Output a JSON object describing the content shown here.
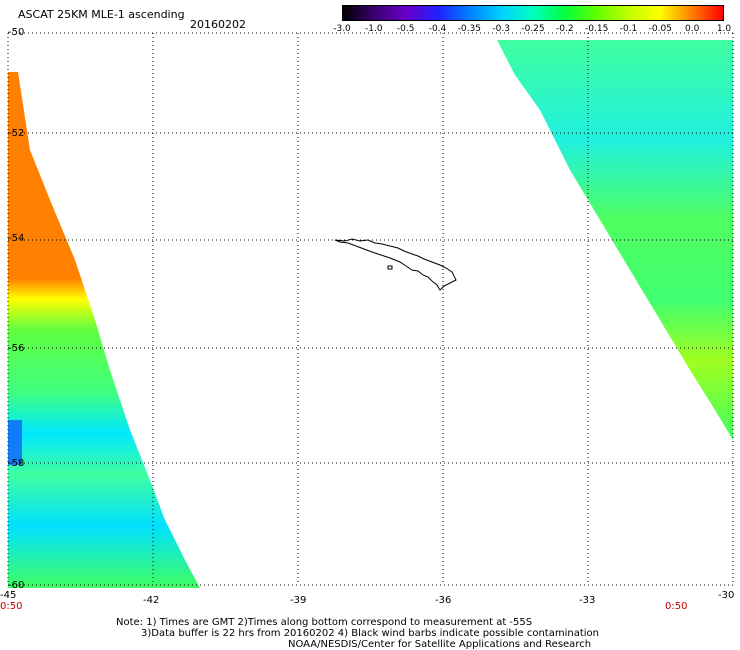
{
  "header": {
    "title": "ASCAT 25KM MLE-1 ascending",
    "date": "20160202"
  },
  "colorbar": {
    "ticks": [
      "-3.0",
      "-1.0",
      "-0.5",
      "-0.4",
      "-0.35",
      "-0.3",
      "-0.25",
      "-0.2",
      "-0.15",
      "-0.1",
      "-0.05",
      "0.0",
      "1.0"
    ],
    "colors": [
      "#000000",
      "#3a0070",
      "#6a00c8",
      "#2020ff",
      "#0080ff",
      "#00d0ff",
      "#00ffc0",
      "#00ff40",
      "#60ff00",
      "#c0ff00",
      "#ffff00",
      "#ff8000",
      "#ff0000"
    ]
  },
  "axes": {
    "lat_labels": [
      "-50",
      "-52",
      "-54",
      "-56",
      "-58",
      "-60"
    ],
    "lon_labels": [
      "-45",
      "-42",
      "-39",
      "-36",
      "-33",
      "-30"
    ],
    "time_left": "0:50",
    "time_right": "0:50"
  },
  "notes": {
    "line1": "Note: 1) Times are GMT 2)Times along bottom correspond to measurement at -55S",
    "line2": "3)Data buffer is 22 hrs from 20160202 4) Black wind barbs indicate possible contamination",
    "line3": "NOAA/NESDIS/Center for Satellite Applications and Research"
  }
}
